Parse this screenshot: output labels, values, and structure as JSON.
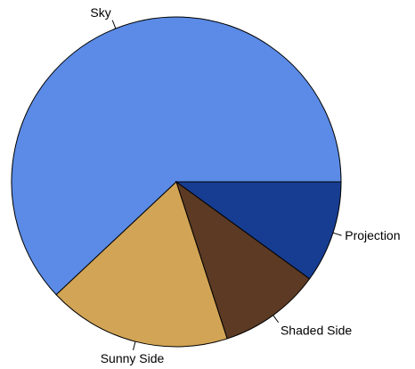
{
  "chart_data": {
    "type": "pie",
    "start_angle_deg": 0,
    "direction": "counterclockwise",
    "slices": [
      {
        "label": "Sky",
        "value": 0.62,
        "color": "#5B8BE6"
      },
      {
        "label": "Sunny Side",
        "value": 0.18,
        "color": "#D2A455"
      },
      {
        "label": "Shaded Side",
        "value": 0.1,
        "color": "#5C3A23"
      },
      {
        "label": "Projection",
        "value": 0.1,
        "color": "#173D92"
      }
    ],
    "title": ""
  }
}
